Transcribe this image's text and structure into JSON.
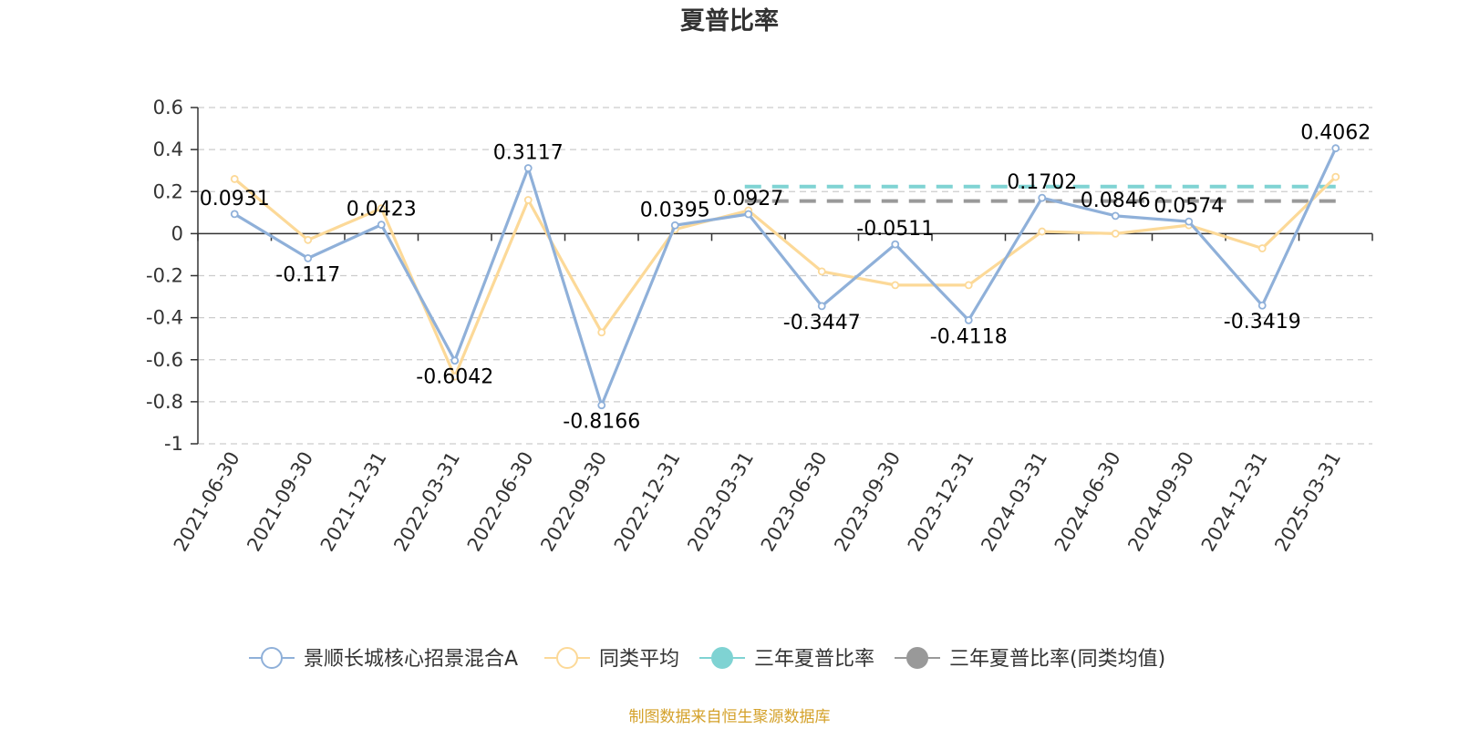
{
  "chart_data": {
    "type": "line",
    "title": "夏普比率",
    "categories": [
      "2021-06-30",
      "2021-09-30",
      "2021-12-31",
      "2022-03-31",
      "2022-06-30",
      "2022-09-30",
      "2022-12-31",
      "2023-03-31",
      "2023-06-30",
      "2023-09-30",
      "2023-12-31",
      "2024-03-31",
      "2024-06-30",
      "2024-09-30",
      "2024-12-31",
      "2025-03-31"
    ],
    "ylim": [
      -1,
      0.6
    ],
    "yticks": [
      0.6,
      0.4,
      0.2,
      0,
      -0.2,
      -0.4,
      -0.6,
      -0.8,
      -1
    ],
    "grid": true,
    "legend_position": "bottom",
    "series": [
      {
        "name": "景顺长城核心招景混合A",
        "color": "#8fb0d9",
        "values": [
          0.0931,
          -0.117,
          0.0423,
          -0.6042,
          0.3117,
          -0.8166,
          0.0395,
          0.0927,
          -0.3447,
          -0.0511,
          -0.4118,
          0.1702,
          0.0846,
          0.0574,
          -0.3419,
          0.4062
        ],
        "labels": [
          "0.0931",
          "-0.117",
          "0.0423",
          "-0.6042",
          "0.3117",
          "-0.8166",
          "0.0395",
          "0.0927",
          "-0.3447",
          "-0.0511",
          "-0.4118",
          "0.1702",
          "0.0846",
          "0.0574",
          "-0.3419",
          "0.4062"
        ]
      },
      {
        "name": "同类平均",
        "color": "#fcd998",
        "values": [
          0.26,
          -0.03,
          0.12,
          -0.68,
          0.16,
          -0.47,
          0.02,
          0.11,
          -0.18,
          -0.245,
          -0.245,
          0.01,
          0.0,
          0.04,
          -0.07,
          0.27
        ]
      }
    ],
    "reference_lines": [
      {
        "name": "三年夏普比率",
        "color": "#7fd3d3",
        "value": 0.224,
        "from": "2023-03-31",
        "to": "2025-03-31"
      },
      {
        "name": "三年夏普比率(同类均值)",
        "color": "#999999",
        "value": 0.155,
        "from": "2023-03-31",
        "to": "2025-03-31"
      }
    ],
    "source": "制图数据来自恒生聚源数据库"
  }
}
